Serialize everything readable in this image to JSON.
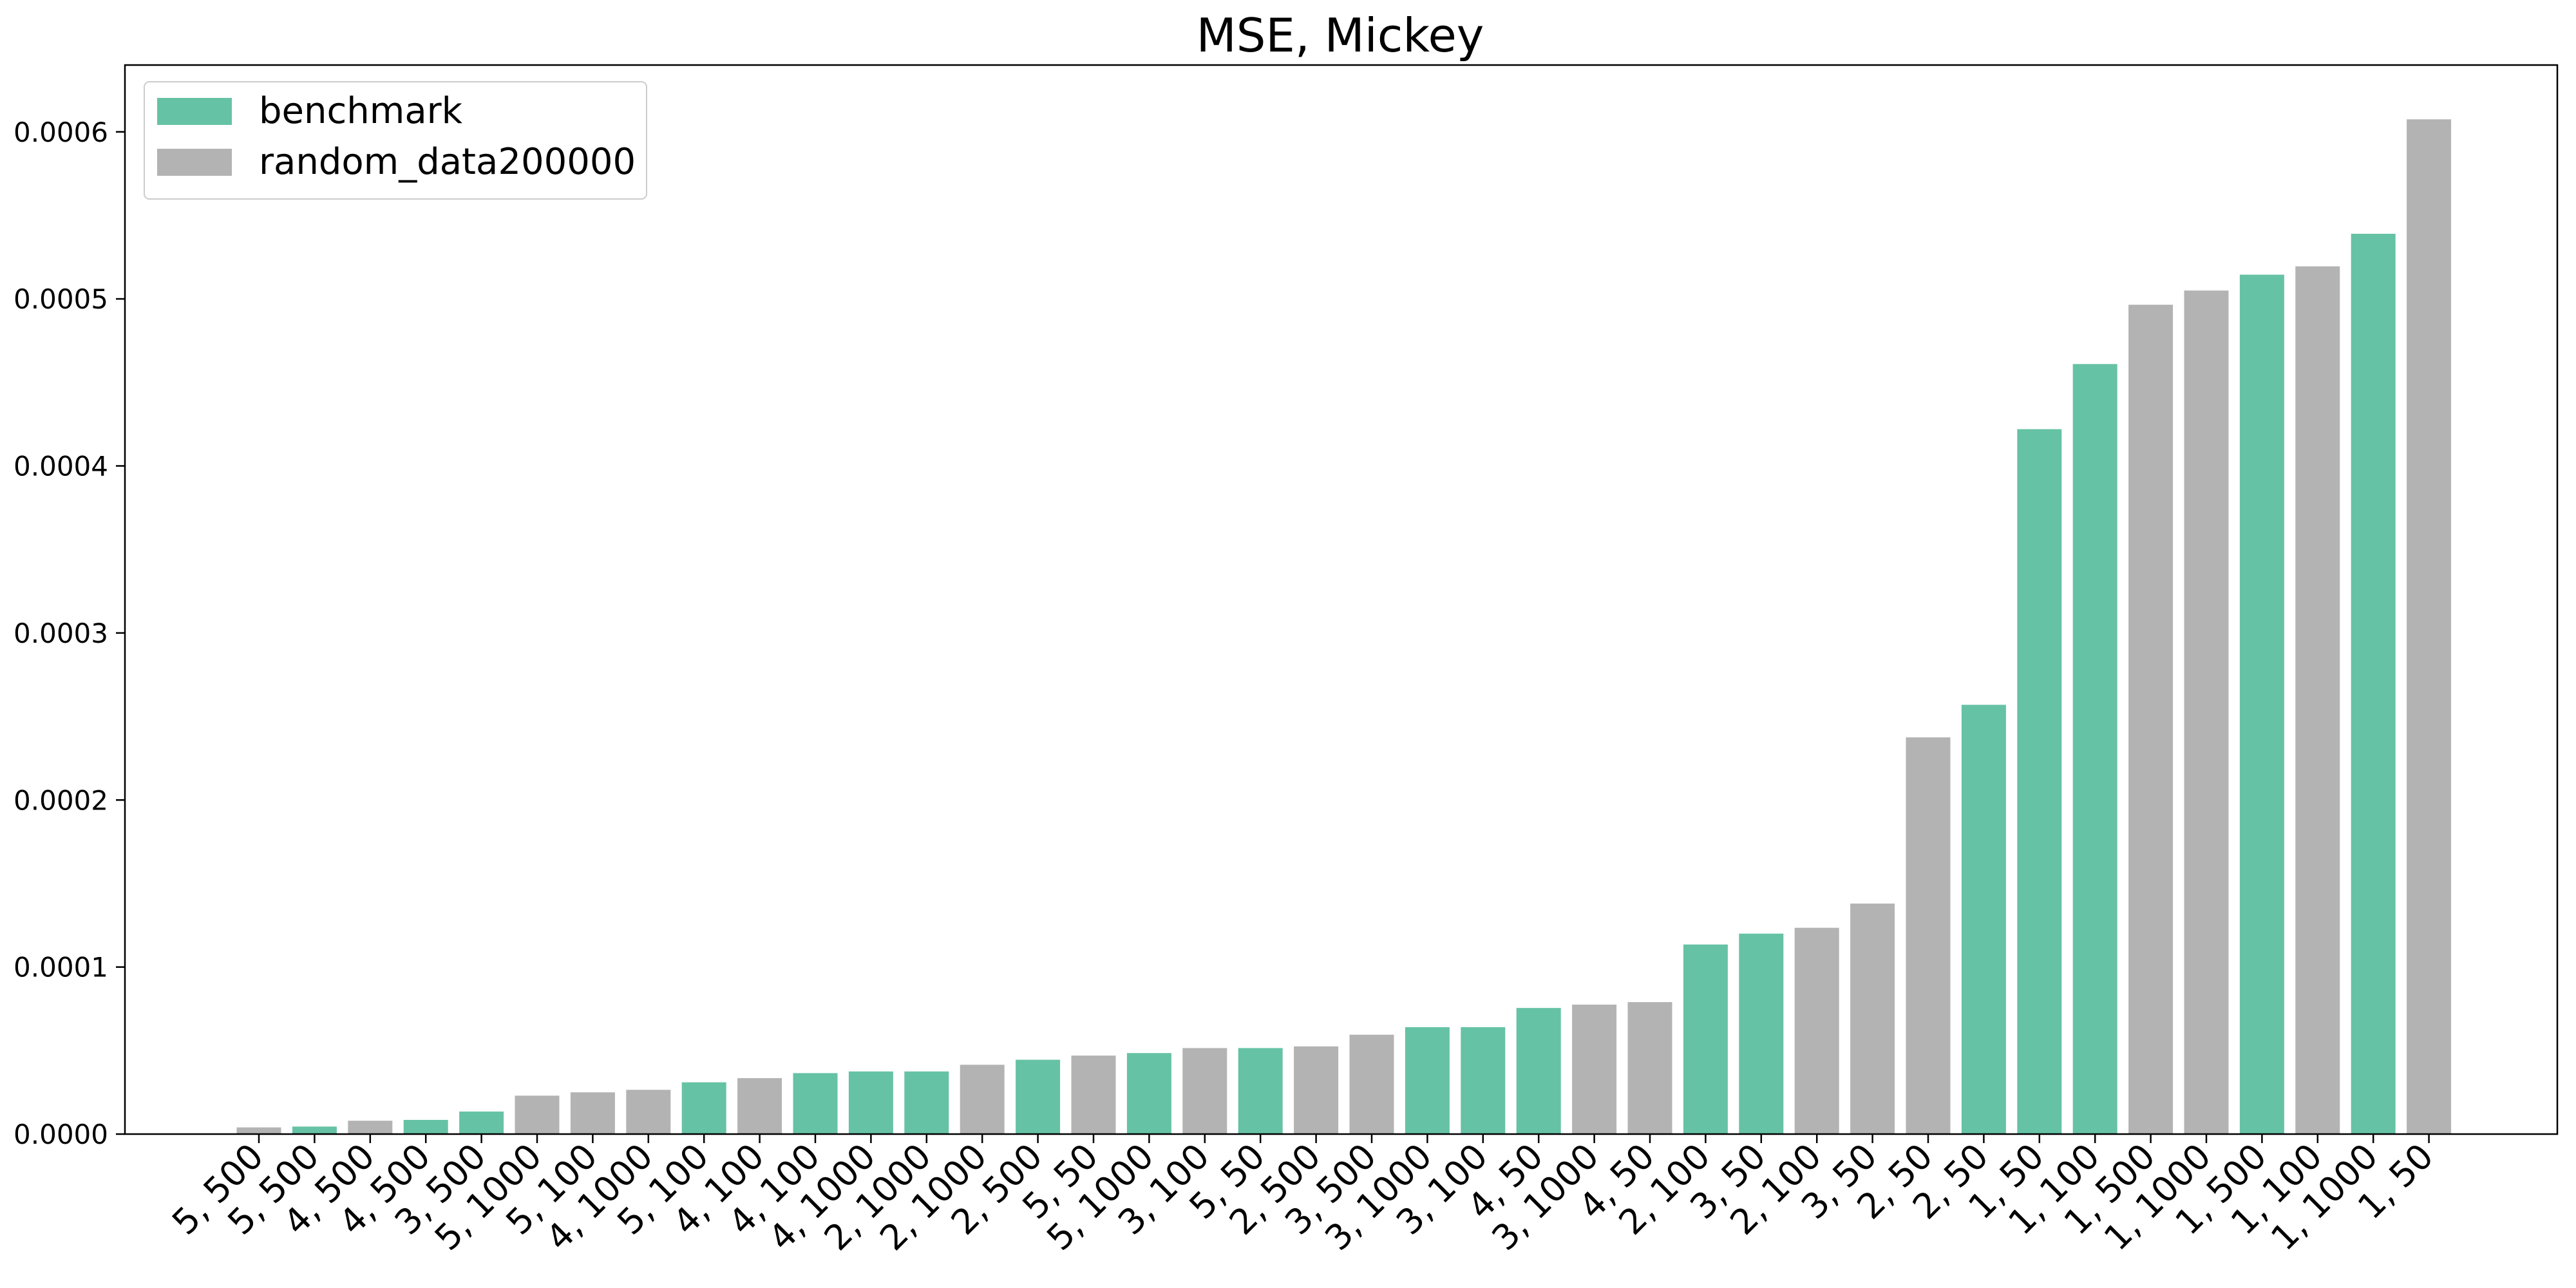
{
  "chart_data": {
    "type": "bar",
    "title": "MSE, Mickey",
    "xlabel": "",
    "ylabel": "",
    "ylim": [
      0,
      0.00064
    ],
    "yticks": [
      "0.0000",
      "0.0001",
      "0.0002",
      "0.0003",
      "0.0004",
      "0.0005",
      "0.0006"
    ],
    "ytick_values": [
      0,
      0.0001,
      0.0002,
      0.0003,
      0.0004,
      0.0005,
      0.0006
    ],
    "grid": false,
    "legend_position": "top-left",
    "legend": [
      {
        "label": "benchmark",
        "color": "#66c2a5"
      },
      {
        "label": "random_data200000",
        "color": "#b3b3b3"
      }
    ],
    "categories": [
      "5, 500",
      "5, 500",
      "4, 500",
      "4, 500",
      "3, 500",
      "5, 1000",
      "5, 100",
      "4, 1000",
      "5, 100",
      "4, 100",
      "4, 100",
      "4, 1000",
      "2, 1000",
      "2, 1000",
      "2, 500",
      "5, 50",
      "5, 1000",
      "3, 100",
      "5, 50",
      "2, 500",
      "3, 500",
      "3, 1000",
      "3, 100",
      "4, 50",
      "3, 1000",
      "4, 50",
      "2, 100",
      "3, 50",
      "2, 100",
      "3, 50",
      "2, 50",
      "2, 50",
      "1, 50",
      "1, 100",
      "1, 500",
      "1, 1000",
      "1, 500",
      "1, 100",
      "1, 1000",
      "1, 50"
    ],
    "values": [
      4e-06,
      4.5e-06,
      8e-06,
      8.5e-06,
      1.35e-05,
      2.3e-05,
      2.5e-05,
      2.65e-05,
      3.1e-05,
      3.35e-05,
      3.65e-05,
      3.75e-05,
      3.75e-05,
      4.15e-05,
      4.45e-05,
      4.7e-05,
      4.85e-05,
      5.15e-05,
      5.15e-05,
      5.25e-05,
      5.95e-05,
      6.4e-05,
      6.4e-05,
      7.55e-05,
      7.75e-05,
      7.9e-05,
      0.0001135,
      0.00012,
      0.0001235,
      0.000138,
      0.0002375,
      0.000257,
      0.000422,
      0.000461,
      0.0004965,
      0.000505,
      0.0005145,
      0.0005195,
      0.000539,
      0.0006075
    ],
    "series_index": [
      1,
      0,
      1,
      0,
      0,
      1,
      1,
      1,
      0,
      1,
      0,
      0,
      0,
      1,
      0,
      1,
      0,
      1,
      0,
      1,
      1,
      0,
      0,
      0,
      1,
      1,
      0,
      0,
      1,
      1,
      1,
      0,
      0,
      0,
      1,
      1,
      0,
      1,
      0,
      1
    ]
  }
}
